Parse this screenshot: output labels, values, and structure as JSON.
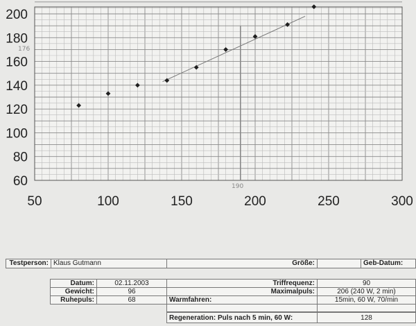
{
  "chart_data": {
    "type": "scatter",
    "x": [
      80,
      100,
      120,
      140,
      160,
      180,
      200,
      222,
      240
    ],
    "y": [
      123,
      133,
      140,
      144,
      155,
      170,
      181,
      191,
      206
    ],
    "xlim": [
      50,
      300
    ],
    "ylim": [
      60,
      210
    ],
    "xticks": [
      "50",
      "100",
      "150",
      "200",
      "250",
      "300"
    ],
    "yticks": [
      "60",
      "80",
      "100",
      "120",
      "140",
      "160",
      "180",
      "200"
    ],
    "trend_line": [
      [
        137,
        143
      ],
      [
        234,
        198
      ]
    ],
    "marker_line_x": 190,
    "annotations": [
      "176",
      "190"
    ],
    "grid": true
  },
  "table": {
    "testperson_label": "Testperson:",
    "testperson_value": "Klaus Gutmann",
    "groesse_label": "Größe:",
    "groesse_value": "",
    "gebdatum_label": "Geb-Datum:",
    "datum_label": "Datum:",
    "datum_value": "02.11.2003",
    "gewicht_label": "Gewicht:",
    "gewicht_value": "96",
    "ruhepuls_label": "Ruhepuls:",
    "ruhepuls_value": "68",
    "triffrequenz_label": "Triffrequenz:",
    "triffrequenz_value": "90",
    "maximalpuls_label": "Maximalpuls:",
    "maximalpuls_value": "206 (240 W, 2 min)",
    "warmfahren_label": "Warmfahren:",
    "warmfahren_value": "15min, 60 W, 70/min",
    "regeneration_label": "Regeneration: Puls nach 5 min, 60 W:",
    "regeneration_value": "128"
  }
}
